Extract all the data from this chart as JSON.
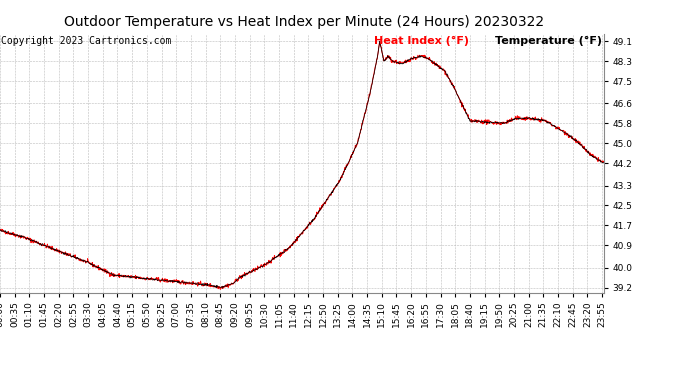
{
  "title": "Outdoor Temperature vs Heat Index per Minute (24 Hours) 20230322",
  "copyright": "Copyright 2023 Cartronics.com",
  "legend_heat_index": "Heat Index (°F)",
  "legend_temperature": "Temperature (°F)",
  "heat_index_color": "#ff0000",
  "temperature_color": "#000000",
  "background_color": "#ffffff",
  "grid_color": "#bbbbbb",
  "yticks": [
    39.2,
    40.0,
    40.9,
    41.7,
    42.5,
    43.3,
    44.2,
    45.0,
    45.8,
    46.6,
    47.5,
    48.3,
    49.1
  ],
  "ylim": [
    39.0,
    49.4
  ],
  "title_fontsize": 10,
  "copyright_fontsize": 7,
  "legend_fontsize": 8,
  "tick_fontsize": 6.5
}
